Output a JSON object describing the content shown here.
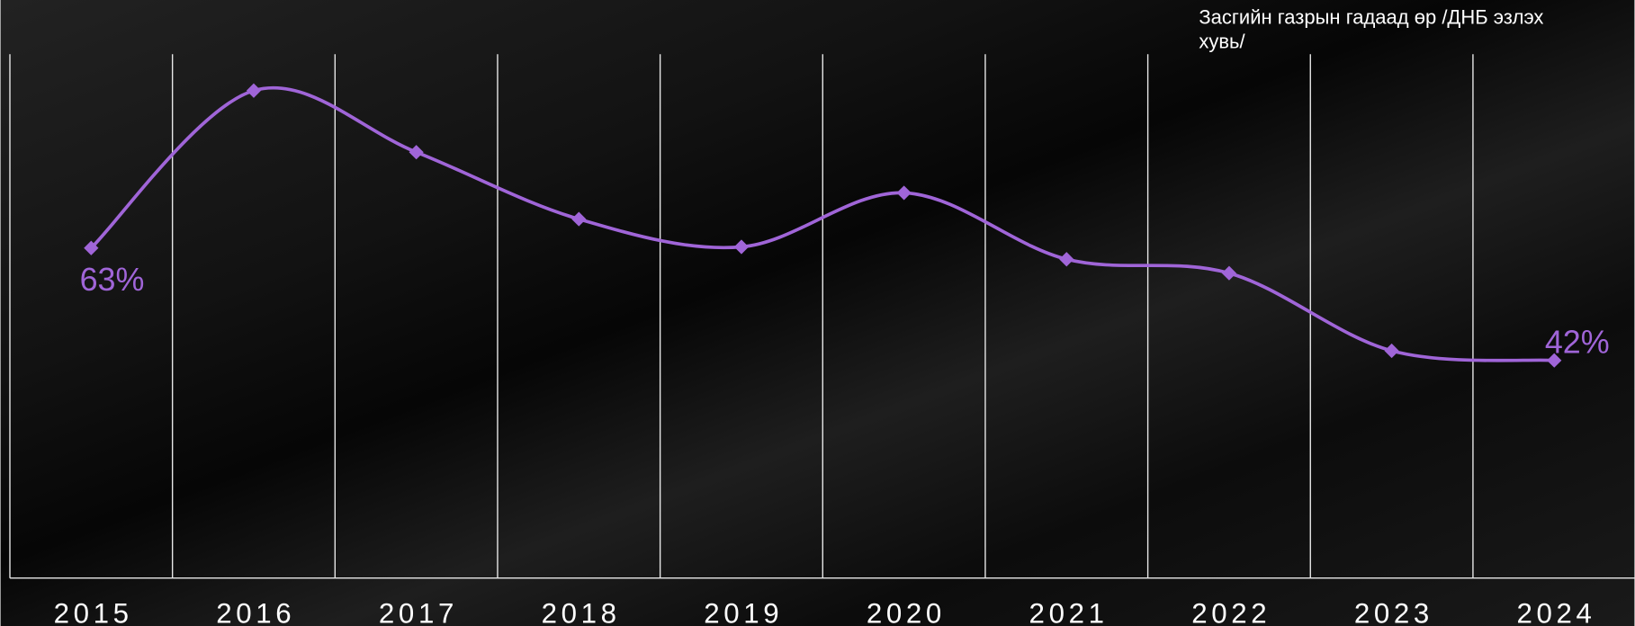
{
  "chart_data": {
    "type": "line",
    "title": "Засгийн газрын гадаад өр /ДНБ эзлэх хувь/",
    "categories": [
      "2015",
      "2016",
      "2017",
      "2018",
      "2019",
      "2020",
      "2021",
      "2022",
      "2023",
      "2024"
    ],
    "series": [
      {
        "name": null,
        "color": "#a065d8",
        "values": [
          63,
          92.4,
          80.9,
          68.4,
          63.2,
          73.3,
          60.9,
          58.3,
          43.8,
          42
        ],
        "value_labels": [
          "63%",
          null,
          null,
          null,
          null,
          null,
          null,
          null,
          null,
          "42%"
        ]
      }
    ],
    "grid": true,
    "smooth": true
  }
}
